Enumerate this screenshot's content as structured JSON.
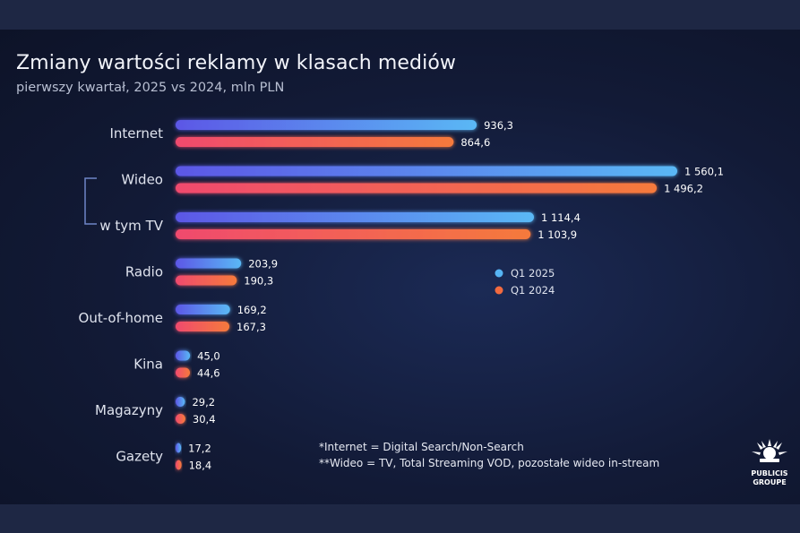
{
  "chart_data": {
    "type": "bar",
    "orientation": "horizontal",
    "title": "Zmiany wartości reklamy w klasach mediów",
    "subtitle": "pierwszy kwartał, 2025 vs 2024, mln PLN",
    "categories": [
      "Internet",
      "Wideo",
      "w tym TV",
      "Radio",
      "Out-of-home",
      "Kina",
      "Magazyny",
      "Gazety"
    ],
    "series": [
      {
        "name": "Q1 2025",
        "color": "#4a7cf0",
        "values": [
          936.3,
          1560.1,
          1114.4,
          203.9,
          169.2,
          45.0,
          29.2,
          17.2
        ],
        "labels": [
          "936,3",
          "1 560,1",
          "1 114,4",
          "203,9",
          "169,2",
          "45,0",
          "29,2",
          "17,2"
        ]
      },
      {
        "name": "Q1 2024",
        "color": "#f0605e",
        "values": [
          864.6,
          1496.2,
          1103.9,
          190.3,
          167.3,
          44.6,
          30.4,
          18.4
        ],
        "labels": [
          "864,6",
          "1 496,2",
          "1 103,9",
          "190,3",
          "167,3",
          "44,6",
          "30,4",
          "18,4"
        ]
      }
    ],
    "xlim": [
      0,
      1560.1
    ],
    "legend": [
      "Q1 2025",
      "Q1 2024"
    ],
    "legend_position": "center-right",
    "grid": false
  },
  "notes": [
    "*Internet = Digital Search/Non-Search",
    "**Wideo = TV, Total Streaming VOD, pozostałe wideo in-stream"
  ],
  "logo": {
    "line1": "PUBLICIS",
    "line2": "GROUPE"
  },
  "colors": {
    "bar_2025_start": "#5b57e6",
    "bar_2025_end": "#5ab8f5",
    "bar_2024_start": "#f04a6e",
    "bar_2024_end": "#f57a3c",
    "legend_2025": "#56b4f3",
    "legend_2024": "#f26a3f"
  }
}
